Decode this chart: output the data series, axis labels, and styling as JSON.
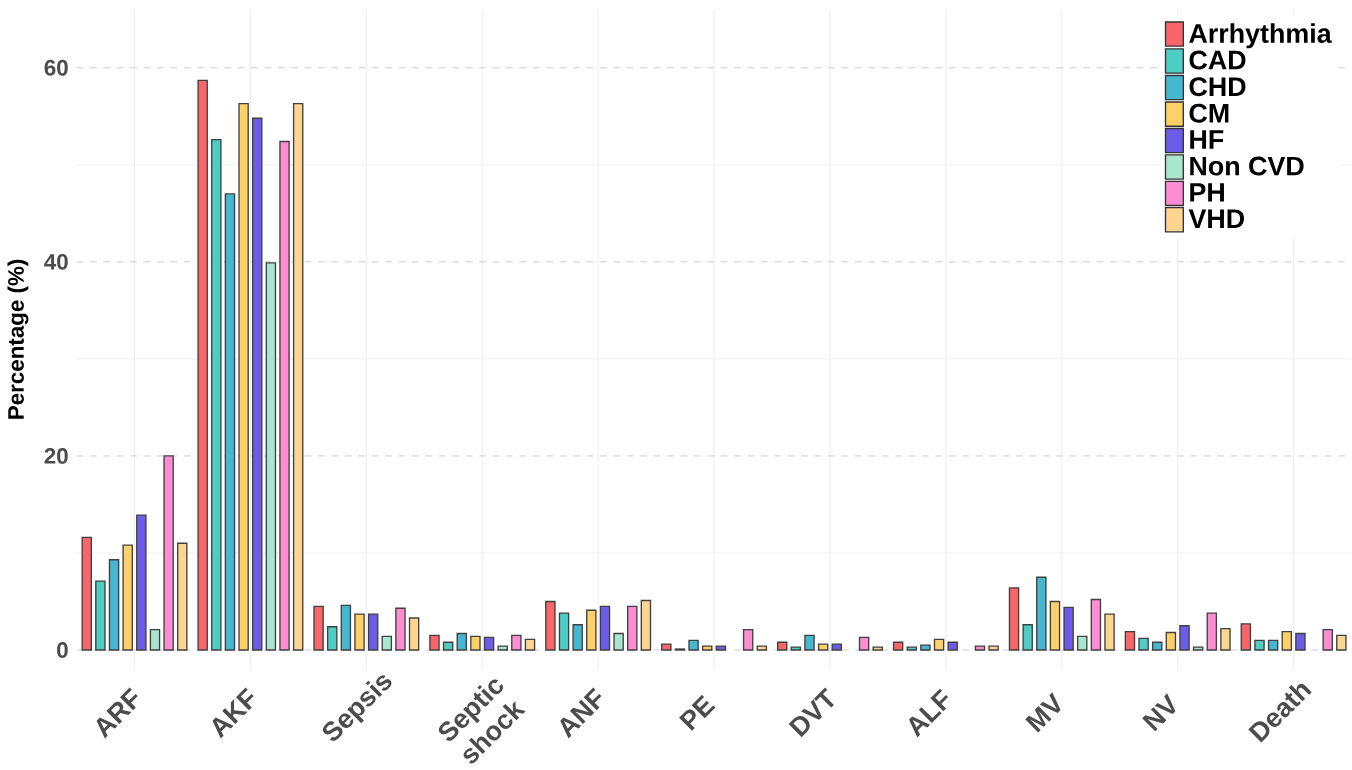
{
  "chart_data": {
    "type": "bar",
    "ylabel": "Percentage (%)",
    "categories": [
      "ARF",
      "AKF",
      "Sepsis",
      "Septic shock",
      "ANF",
      "PE",
      "DVT",
      "ALF",
      "MV",
      "NV",
      "Death"
    ],
    "series": [
      {
        "name": "Arrhythmia",
        "color": "#f8666a",
        "values": [
          11.6,
          58.7,
          4.5,
          1.5,
          5.0,
          0.6,
          0.8,
          0.8,
          6.4,
          1.9,
          2.7
        ]
      },
      {
        "name": "CAD",
        "color": "#4ecdc4",
        "values": [
          7.1,
          52.6,
          2.4,
          0.8,
          3.8,
          0.1,
          0.3,
          0.3,
          2.6,
          1.2,
          1.0
        ]
      },
      {
        "name": "CHD",
        "color": "#45b7d1",
        "values": [
          9.3,
          47.0,
          4.6,
          1.7,
          2.6,
          1.0,
          1.5,
          0.5,
          7.5,
          0.8,
          1.0
        ]
      },
      {
        "name": "CM",
        "color": "#fed065",
        "values": [
          10.8,
          56.3,
          3.7,
          1.4,
          4.1,
          0.4,
          0.6,
          1.1,
          5.0,
          1.8,
          1.9
        ]
      },
      {
        "name": "HF",
        "color": "#6c5ce7",
        "values": [
          13.9,
          54.8,
          3.7,
          1.3,
          4.5,
          0.4,
          0.6,
          0.8,
          4.4,
          2.5,
          1.7
        ]
      },
      {
        "name": "Non CVD",
        "color": "#a8e6cf",
        "values": [
          2.1,
          39.9,
          1.4,
          0.4,
          1.7,
          null,
          null,
          null,
          1.4,
          0.3,
          null
        ]
      },
      {
        "name": "PH",
        "color": "#fd8cd2",
        "values": [
          20.0,
          52.4,
          4.3,
          1.5,
          4.5,
          2.1,
          1.3,
          0.4,
          5.2,
          3.8,
          2.1
        ]
      },
      {
        "name": "VHD",
        "color": "#fdd591",
        "values": [
          11.0,
          56.3,
          3.3,
          1.1,
          5.1,
          0.4,
          0.3,
          0.4,
          3.7,
          2.2,
          1.5
        ]
      }
    ],
    "ylim": [
      -2,
      66
    ],
    "yticks": [
      0,
      20,
      40,
      60
    ],
    "grid": true,
    "legend": "top right"
  }
}
